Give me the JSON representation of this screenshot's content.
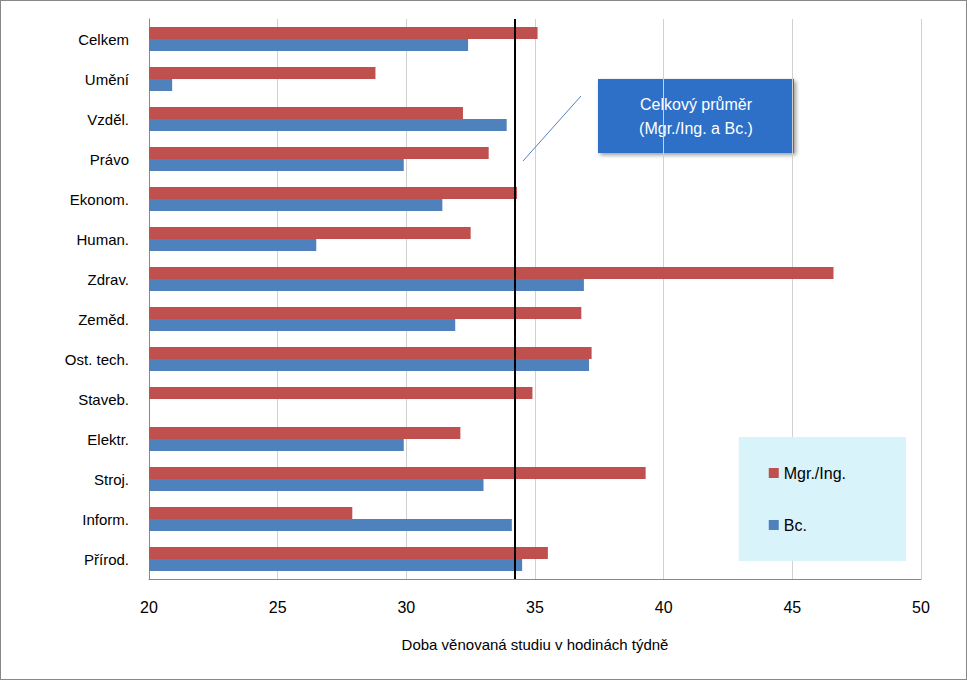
{
  "chart_data": {
    "type": "bar",
    "orientation": "horizontal",
    "xlabel": "Doba věnovaná studiu v hodinách týdně",
    "categories": [
      "Celkem",
      "Umění",
      "Vzděl.",
      "Právo",
      "Ekonom.",
      "Human.",
      "Zdrav.",
      "Zeměd.",
      "Ost. tech.",
      "Staveb.",
      "Elektr.",
      "Stroj.",
      "Inform.",
      "Přírod."
    ],
    "series": [
      {
        "name": "Mgr./Ing.",
        "color": "#c0504d",
        "values": [
          35.1,
          28.8,
          32.2,
          33.2,
          34.3,
          32.5,
          46.6,
          36.8,
          37.2,
          34.9,
          32.1,
          39.3,
          27.9,
          35.5
        ]
      },
      {
        "name": "Bc.",
        "color": "#4f81bd",
        "values": [
          32.4,
          20.9,
          33.9,
          29.9,
          31.4,
          26.5,
          36.9,
          31.9,
          37.1,
          null,
          29.9,
          33.0,
          34.1,
          34.5
        ]
      }
    ],
    "xlim": [
      20,
      50
    ],
    "xticks": [
      20,
      25,
      30,
      35,
      40,
      45,
      50
    ],
    "grid": true,
    "legend": "lower right",
    "reference_line": {
      "value": 34.2,
      "label": "Celkový průměr\n(Mgr./Ing. a Bc.)"
    }
  }
}
